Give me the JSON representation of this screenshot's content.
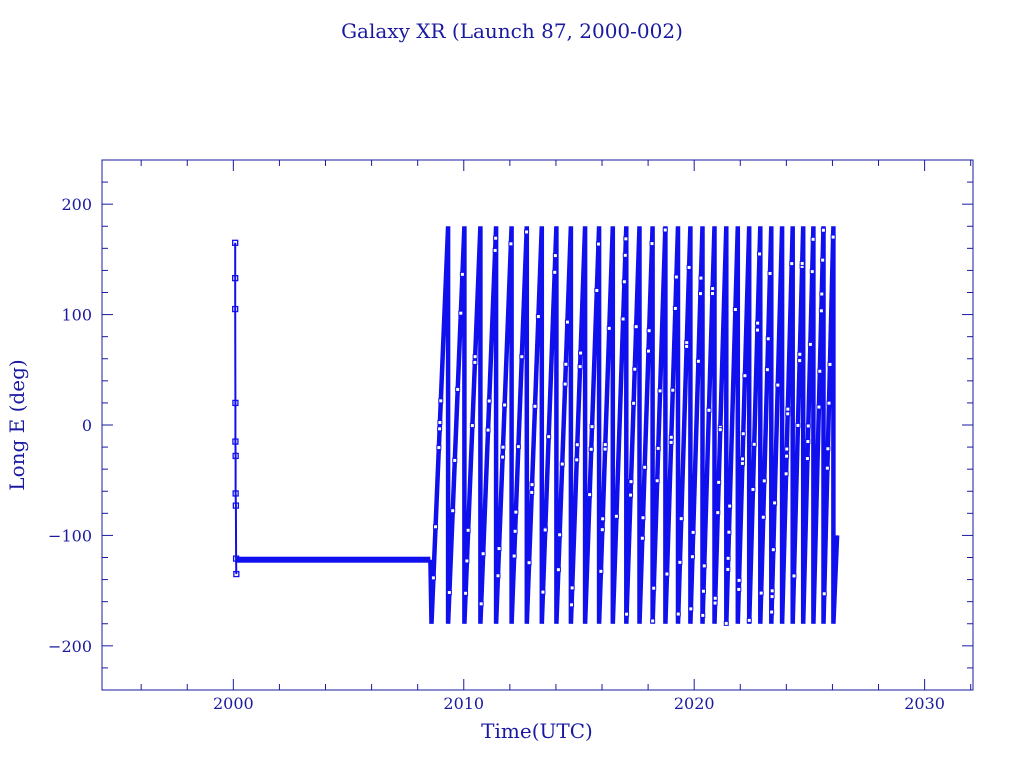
{
  "chart_data": {
    "type": "line",
    "title": "Galaxy XR (Launch 87, 2000-002)",
    "xlabel": "Time(UTC)",
    "ylabel": "Long E (deg)",
    "xlim": [
      1994.3,
      2032.1
    ],
    "ylim": [
      -240,
      240
    ],
    "xticks": [
      2000,
      2010,
      2020,
      2030
    ],
    "yticks": [
      200,
      100,
      0,
      -100,
      -200
    ],
    "xtick_labels": [
      "2000",
      "2010",
      "2020",
      "2030"
    ],
    "ytick_labels": [
      "200",
      "100",
      "0",
      "−100",
      "−200"
    ],
    "grid": false,
    "colors": {
      "line": "#1010ee",
      "axis": "#1a1aa0"
    },
    "series": [
      {
        "segments": [
          {
            "kind": "points",
            "x": [
              2000.08,
              2000.08,
              2000.08,
              2000.09,
              2000.09,
              2000.1,
              2000.1,
              2000.11,
              2000.12,
              2000.13
            ],
            "y": [
              165,
              133,
              105,
              20,
              -15,
              -28,
              -62,
              -73,
              -121,
              -135
            ]
          },
          {
            "kind": "flat",
            "x_start": 2000.13,
            "x_end": 2008.55,
            "y": -122
          },
          {
            "kind": "drift",
            "x_start": 2008.55,
            "x_end": 2026.2,
            "first_cycle_years": 0.72,
            "last_cycle_years": 0.42,
            "y_min": -180,
            "y_max": 180,
            "end_y": -100
          }
        ]
      }
    ]
  }
}
